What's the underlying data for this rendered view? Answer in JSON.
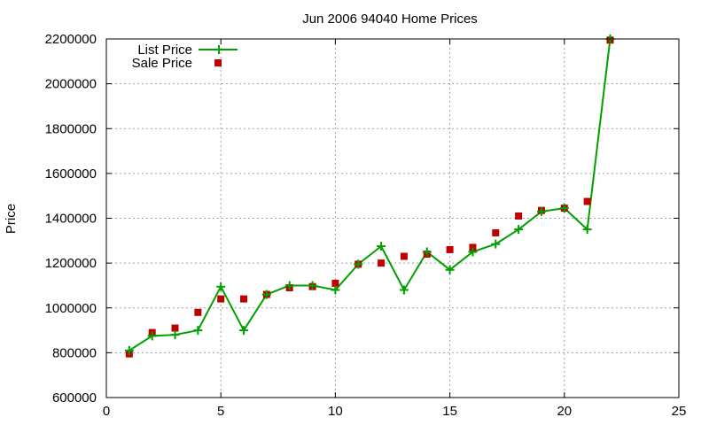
{
  "chart_data": {
    "type": "line",
    "title": "Jun 2006 94040 Home Prices",
    "xlabel": "",
    "ylabel": "Price",
    "xlim": [
      0,
      25
    ],
    "ylim": [
      600000,
      2200000
    ],
    "xticks": [
      0,
      5,
      10,
      15,
      20,
      25
    ],
    "yticks": [
      600000,
      800000,
      1000000,
      1200000,
      1400000,
      1600000,
      1800000,
      2000000,
      2200000
    ],
    "xtick_labels": [
      "0",
      "5",
      "10",
      "15",
      "20",
      "25"
    ],
    "ytick_labels": [
      "600000",
      "800000",
      "1000000",
      "1200000",
      "1400000",
      "1600000",
      "1800000",
      "2000000",
      "2200000"
    ],
    "grid": true,
    "legend_position": "top-left",
    "series": [
      {
        "name": "List Price",
        "style": "line-with-plus-markers",
        "color": "#00a000",
        "x": [
          1,
          2,
          3,
          4,
          5,
          6,
          7,
          8,
          9,
          10,
          11,
          12,
          13,
          14,
          15,
          16,
          17,
          18,
          19,
          20,
          21,
          22
        ],
        "y": [
          810000,
          875000,
          880000,
          900000,
          1095000,
          900000,
          1060000,
          1100000,
          1100000,
          1080000,
          1195000,
          1275000,
          1080000,
          1250000,
          1170000,
          1250000,
          1285000,
          1350000,
          1430000,
          1445000,
          1350000,
          2200000
        ]
      },
      {
        "name": "Sale Price",
        "style": "square-markers",
        "color": "#c00000",
        "x": [
          1,
          2,
          3,
          4,
          5,
          6,
          7,
          8,
          9,
          10,
          11,
          12,
          13,
          14,
          15,
          16,
          17,
          18,
          19,
          20,
          21,
          22
        ],
        "y": [
          795000,
          890000,
          910000,
          980000,
          1040000,
          1040000,
          1060000,
          1090000,
          1095000,
          1110000,
          1195000,
          1200000,
          1230000,
          1240000,
          1260000,
          1270000,
          1335000,
          1410000,
          1435000,
          1445000,
          1475000,
          2195000
        ]
      }
    ]
  }
}
